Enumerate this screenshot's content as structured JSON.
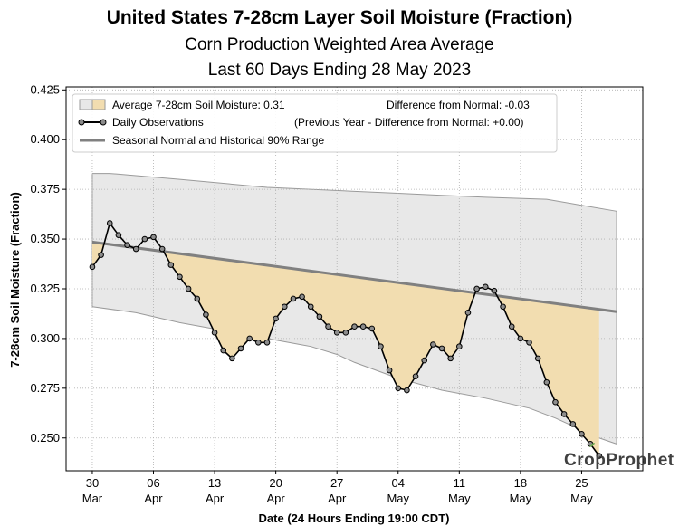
{
  "title": "United States 7-28cm Layer Soil Moisture (Fraction)",
  "subtitle": "Corn Production Weighted Area Average",
  "subtitle2": "Last 60 Days Ending 28 May 2023",
  "legend": {
    "average": "Average 7-28cm Soil Moisture: 0.31",
    "difference": "Difference from Normal: -0.03",
    "daily": "Daily Observations",
    "previous": "(Previous Year - Difference from Normal: +0.00)",
    "normal": "Seasonal Normal and Historical 90% Range"
  },
  "logo": "CropProphet",
  "colors": {
    "range_fill": "#e8e8e8",
    "range_edge": "#9a9a9a",
    "deficit_fill": "#f2ddb0",
    "normal_line": "#808080",
    "obs_line": "#000000",
    "marker_fill": "#8c8c8c"
  },
  "chart_data": {
    "type": "line",
    "xlabel": "Date (24 Hours Ending 19:00 CDT)",
    "ylabel": "7-28cm Soil Moisture (Fraction)",
    "xlim": [
      -3,
      63
    ],
    "ylim": [
      0.2335,
      0.4265
    ],
    "x_ticks": [
      {
        "x": 0,
        "l1": "30",
        "l2": "Mar"
      },
      {
        "x": 7,
        "l1": "06",
        "l2": "Apr"
      },
      {
        "x": 14,
        "l1": "13",
        "l2": "Apr"
      },
      {
        "x": 21,
        "l1": "20",
        "l2": "Apr"
      },
      {
        "x": 28,
        "l1": "27",
        "l2": "Apr"
      },
      {
        "x": 35,
        "l1": "04",
        "l2": "May"
      },
      {
        "x": 42,
        "l1": "11",
        "l2": "May"
      },
      {
        "x": 49,
        "l1": "18",
        "l2": "May"
      },
      {
        "x": 56,
        "l1": "25",
        "l2": "May"
      }
    ],
    "y_ticks": [
      0.25,
      0.275,
      0.3,
      0.325,
      0.35,
      0.375,
      0.4,
      0.425
    ],
    "y_tick_labels": [
      "0.250",
      "0.275",
      "0.300",
      "0.325",
      "0.350",
      "0.375",
      "0.400",
      "0.425"
    ],
    "observations": [
      0.336,
      0.342,
      0.358,
      0.352,
      0.347,
      0.345,
      0.35,
      0.351,
      0.345,
      0.337,
      0.331,
      0.325,
      0.32,
      0.312,
      0.303,
      0.294,
      0.29,
      0.295,
      0.3,
      0.298,
      0.298,
      0.31,
      0.316,
      0.32,
      0.321,
      0.316,
      0.311,
      0.306,
      0.303,
      0.303,
      0.306,
      0.306,
      0.305,
      0.296,
      0.284,
      0.275,
      0.274,
      0.281,
      0.289,
      0.297,
      0.295,
      0.29,
      0.296,
      0.313,
      0.325,
      0.326,
      0.324,
      0.316,
      0.306,
      0.3,
      0.298,
      0.29,
      0.278,
      0.268,
      0.262,
      0.257,
      0.252,
      0.247,
      0.241
    ],
    "normal": {
      "x": [
        0,
        60
      ],
      "y": [
        0.3485,
        0.3135
      ]
    },
    "range_upper": [
      [
        0,
        0.383
      ],
      [
        2,
        0.383
      ],
      [
        10,
        0.38
      ],
      [
        20,
        0.376
      ],
      [
        30,
        0.374
      ],
      [
        35,
        0.373
      ],
      [
        40,
        0.372
      ],
      [
        45,
        0.371
      ],
      [
        52,
        0.37
      ],
      [
        56,
        0.367
      ],
      [
        60,
        0.364
      ]
    ],
    "range_lower": [
      [
        0,
        0.316
      ],
      [
        5,
        0.313
      ],
      [
        10,
        0.308
      ],
      [
        15,
        0.304
      ],
      [
        20,
        0.3
      ],
      [
        25,
        0.296
      ],
      [
        28,
        0.292
      ],
      [
        30,
        0.288
      ],
      [
        35,
        0.28
      ],
      [
        40,
        0.274
      ],
      [
        45,
        0.27
      ],
      [
        50,
        0.265
      ],
      [
        53,
        0.26
      ],
      [
        56,
        0.254
      ],
      [
        58,
        0.25
      ],
      [
        60,
        0.247
      ]
    ]
  }
}
